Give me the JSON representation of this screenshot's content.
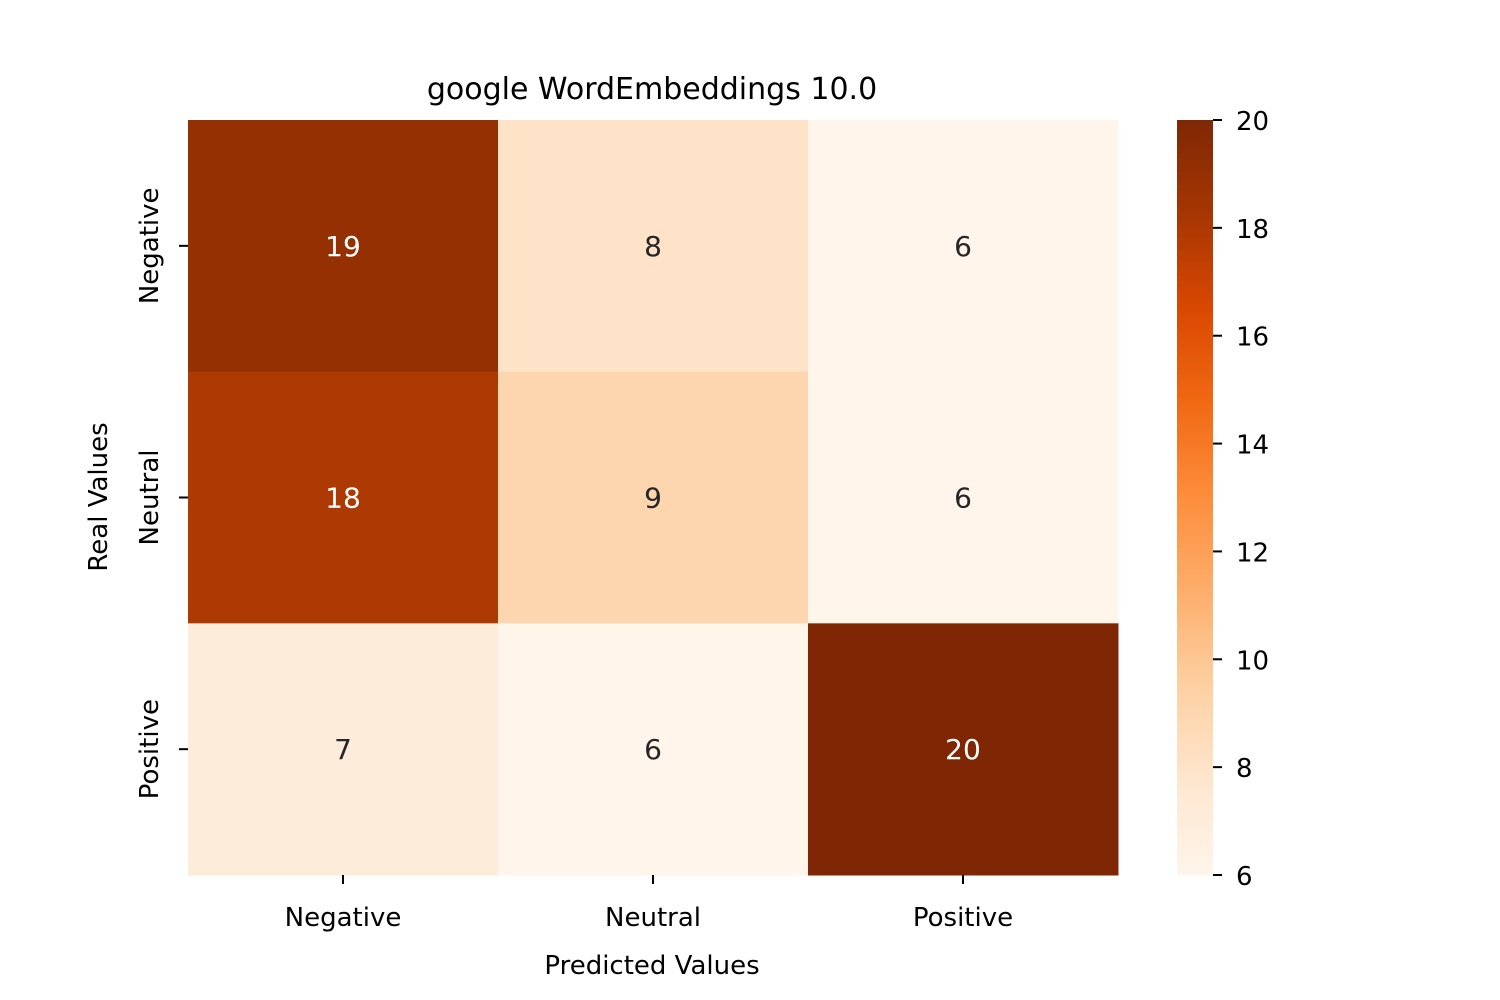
{
  "chart_data": {
    "type": "heatmap",
    "title": "google WordEmbeddings 10.0",
    "xlabel": "Predicted Values",
    "ylabel": "Real Values",
    "x_categories": [
      "Negative",
      "Neutral",
      "Positive"
    ],
    "y_categories": [
      "Negative",
      "Neutral",
      "Positive"
    ],
    "values": [
      [
        19,
        8,
        6
      ],
      [
        18,
        9,
        6
      ],
      [
        7,
        6,
        20
      ]
    ],
    "colorbar": {
      "colormap": "Oranges",
      "range": [
        6,
        20
      ],
      "ticks": [
        "6",
        "8",
        "10",
        "12",
        "14",
        "16",
        "18",
        "20"
      ]
    },
    "colors": {
      "cell_text_light": "#ffffff",
      "cell_text_dark": "#262626",
      "colormap_stops": [
        "#fff5eb",
        "#fee6ce",
        "#fdd0a2",
        "#fdae6b",
        "#fd8d3c",
        "#f16913",
        "#d94801",
        "#a63603",
        "#7f2704"
      ]
    }
  }
}
